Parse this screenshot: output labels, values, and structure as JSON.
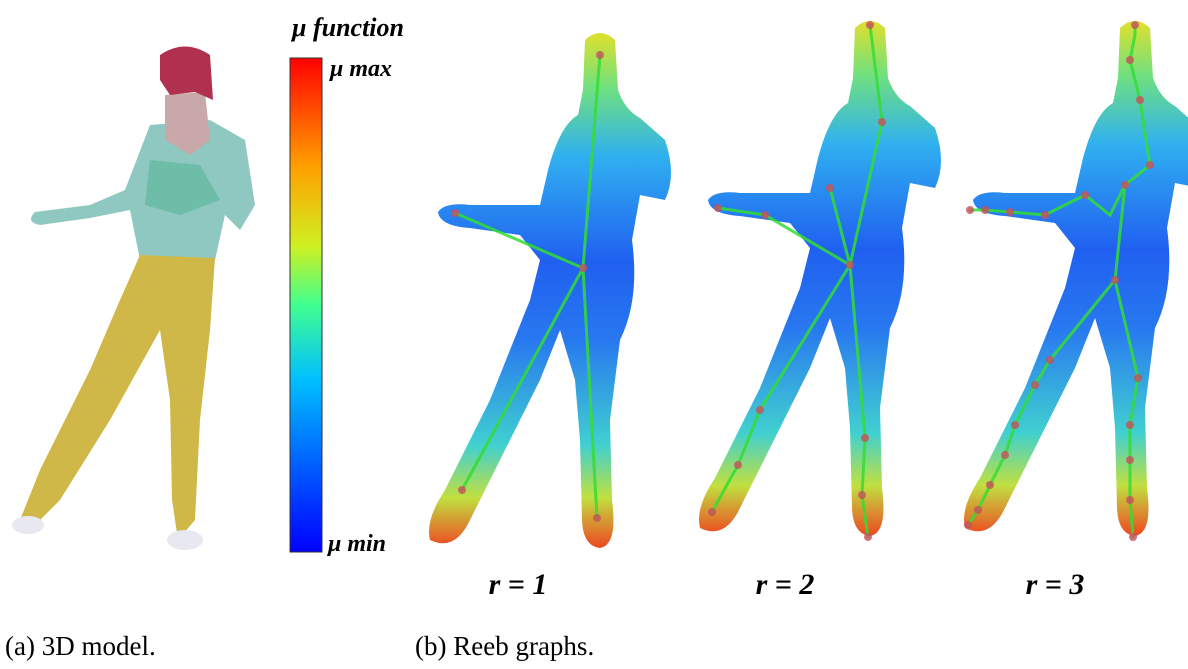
{
  "colorbar": {
    "title": "μ function",
    "max_label": "μ max",
    "min_label": "μ min"
  },
  "panels": [
    {
      "label": "r = 1"
    },
    {
      "label": "r = 2"
    },
    {
      "label": "r = 3"
    }
  ],
  "captions": [
    "(a) 3D model.",
    "(b) Reeb graphs."
  ]
}
